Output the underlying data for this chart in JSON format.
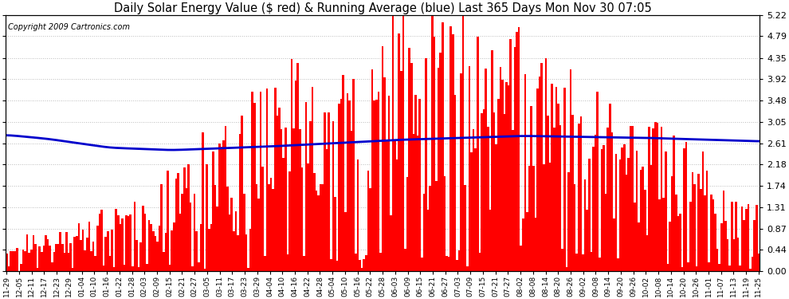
{
  "title": "Daily Solar Energy Value ($ red) & Running Average (blue) Last 365 Days Mon Nov 30 07:05",
  "copyright": "Copyright 2009 Cartronics.com",
  "ylim": [
    0.0,
    5.22
  ],
  "yticks": [
    0.0,
    0.44,
    0.87,
    1.31,
    1.74,
    2.18,
    2.61,
    3.05,
    3.48,
    3.92,
    4.35,
    4.79,
    5.22
  ],
  "bar_color": "#ff0000",
  "avg_color": "#0000cc",
  "background_color": "#ffffff",
  "grid_color": "#bbbbbb",
  "title_fontsize": 10.5,
  "copyright_fontsize": 7,
  "avg_linewidth": 2.0,
  "x_tick_dates": [
    "11-29",
    "12-05",
    "12-11",
    "12-17",
    "12-23",
    "12-29",
    "01-04",
    "01-10",
    "01-16",
    "01-22",
    "01-28",
    "02-03",
    "02-09",
    "02-15",
    "02-21",
    "02-27",
    "03-05",
    "03-11",
    "03-17",
    "03-23",
    "03-29",
    "04-04",
    "04-10",
    "04-16",
    "04-22",
    "04-28",
    "05-04",
    "05-10",
    "05-16",
    "05-22",
    "05-28",
    "06-03",
    "06-09",
    "06-15",
    "06-21",
    "06-27",
    "07-03",
    "07-09",
    "07-15",
    "07-21",
    "07-27",
    "08-02",
    "08-08",
    "08-14",
    "08-20",
    "08-26",
    "09-02",
    "09-08",
    "09-14",
    "09-20",
    "09-26",
    "10-02",
    "10-08",
    "10-14",
    "10-20",
    "10-26",
    "11-01",
    "11-07",
    "11-13",
    "11-19",
    "11-25"
  ],
  "avg_control_x": [
    0,
    20,
    50,
    80,
    130,
    190,
    250,
    310,
    364
  ],
  "avg_control_y": [
    2.78,
    2.7,
    2.52,
    2.47,
    2.55,
    2.68,
    2.76,
    2.72,
    2.65
  ]
}
